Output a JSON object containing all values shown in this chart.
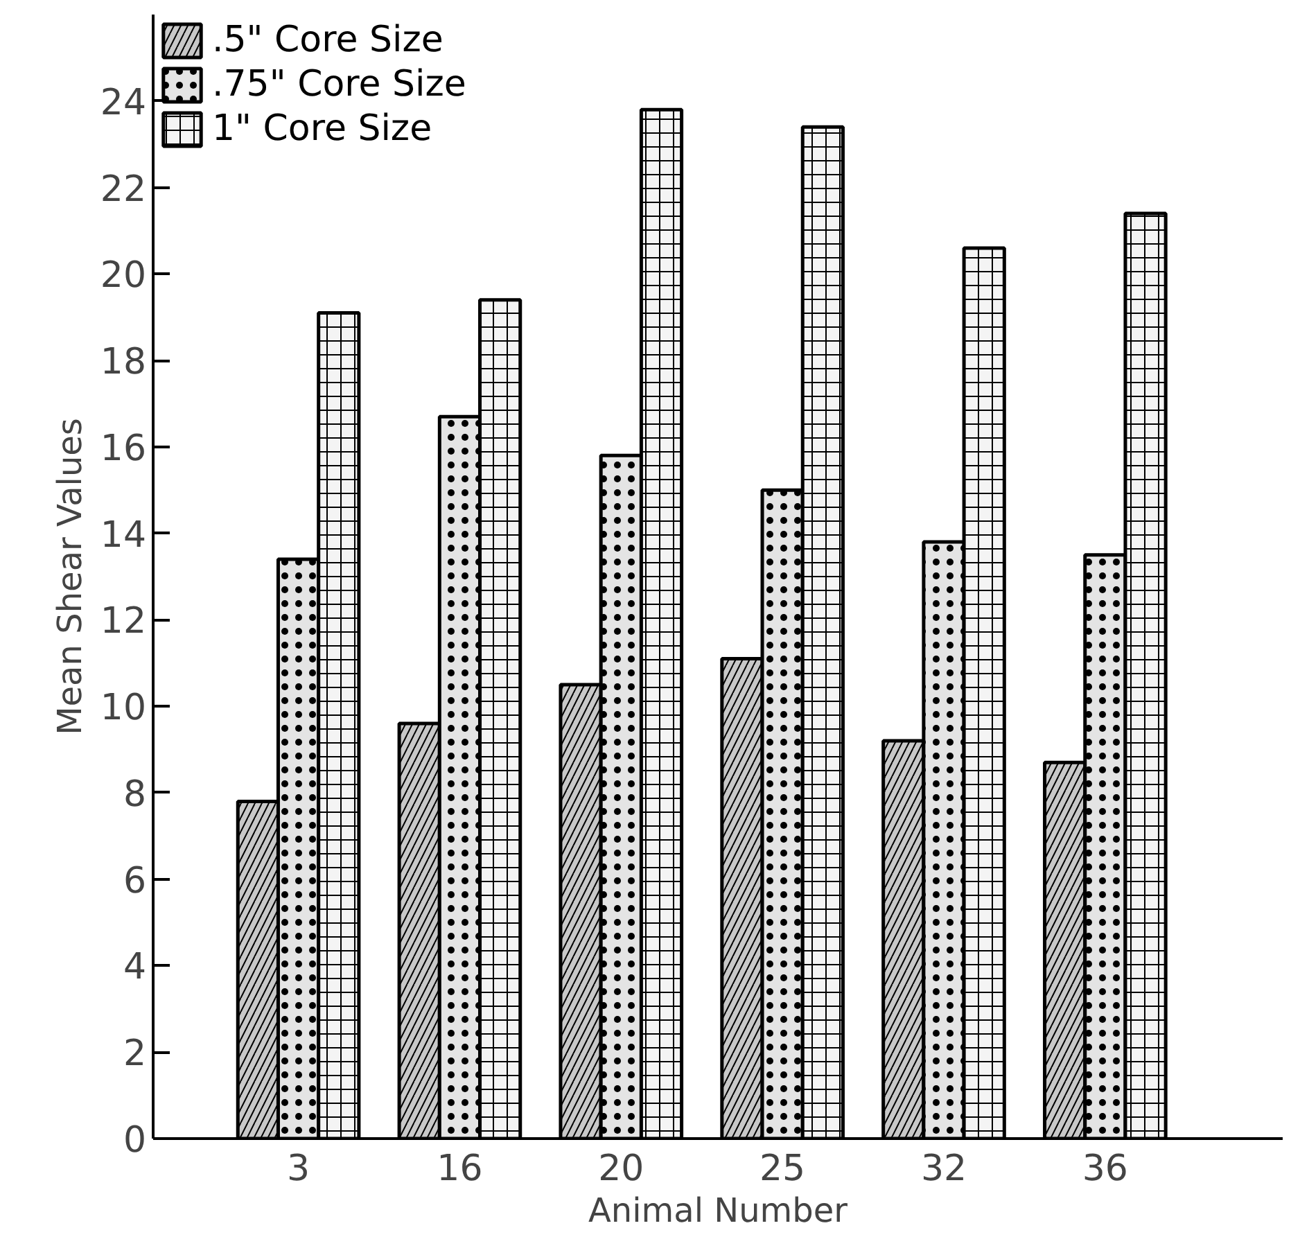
{
  "chart_data": {
    "type": "bar",
    "xlabel": "Animal Number",
    "ylabel": "Mean Shear Values",
    "categories": [
      "3",
      "16",
      "20",
      "25",
      "32",
      "36"
    ],
    "series": [
      {
        "name": ".5\" Core Size",
        "color": "#c8c8c8",
        "values": [
          7.8,
          9.6,
          10.5,
          11.1,
          9.2,
          8.7
        ]
      },
      {
        "name": ".75\" Core Size",
        "color": "#e4e4e4",
        "values": [
          13.4,
          16.7,
          15.8,
          15.0,
          13.8,
          13.5
        ]
      },
      {
        "name": "1\" Core Size",
        "color": "#f4f4f4",
        "values": [
          19.1,
          19.4,
          23.8,
          23.4,
          20.6,
          21.4
        ]
      }
    ],
    "ylim": [
      0,
      26
    ],
    "yticks": [
      0,
      2,
      4,
      6,
      8,
      10,
      12,
      14,
      16,
      18,
      20,
      22,
      24
    ],
    "grid": false,
    "legend": "top left"
  }
}
